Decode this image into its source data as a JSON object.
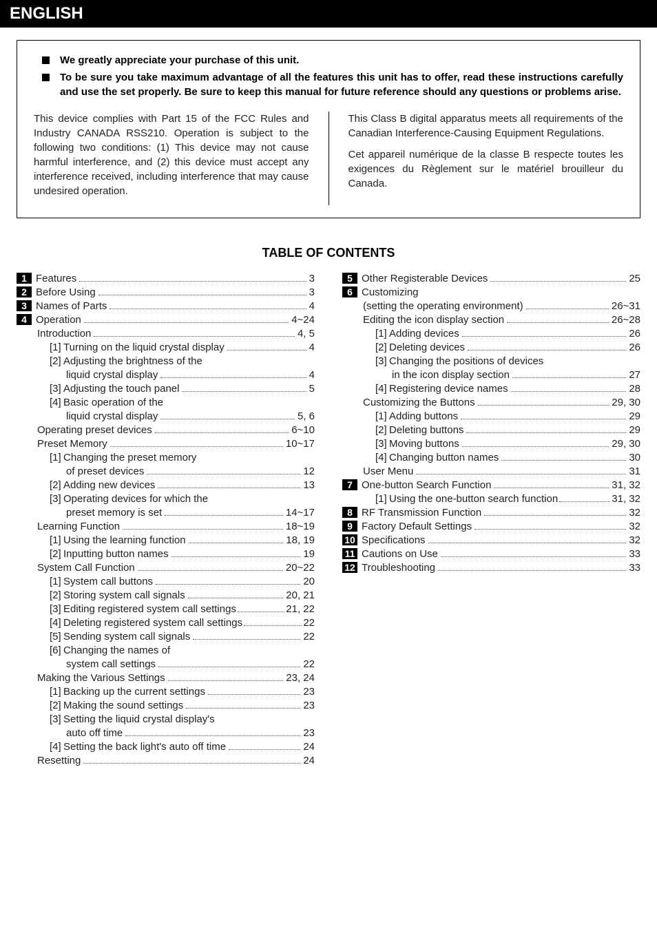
{
  "language_header": "ENGLISH",
  "intro_bullets": [
    "We greatly appreciate your purchase of this unit.",
    "To be sure you take maximum advantage of all the features this unit has to offer, read these instructions carefully and use the set properly. Be sure to keep this manual for future reference should any questions or problems arise."
  ],
  "compliance": {
    "left": "This device complies with Part 15 of the FCC Rules and Industry CANADA RSS210.\nOperation is subject to the following two conditions: (1) This device may not cause harmful interference, and (2) this device must accept any interference received, including interference that may cause undesired operation.",
    "right_en": "This Class B digital apparatus meets all requirements of the Canadian Interference-Causing Equipment Regulations.",
    "right_fr": "Cet appareil numérique de la classe B respecte toutes les exigences du Règlement sur le matériel brouilleur du Canada."
  },
  "toc_title": "TABLE OF CONTENTS",
  "toc_left": [
    {
      "num": "1",
      "label": "Features",
      "page": "3",
      "indent": 0
    },
    {
      "num": "2",
      "label": "Before Using",
      "page": "3",
      "indent": 0
    },
    {
      "num": "3",
      "label": "Names of Parts",
      "page": "4",
      "indent": 0
    },
    {
      "num": "4",
      "label": "Operation",
      "page": "4~24",
      "indent": 0
    },
    {
      "label": "Introduction",
      "page": "4, 5",
      "indent": 1
    },
    {
      "bracket": "[1]",
      "label": "Turning on the liquid crystal display",
      "page": "4",
      "indent": 2
    },
    {
      "bracket": "[2]",
      "label": "Adjusting the brightness of the",
      "indent": 2,
      "nowrap": true
    },
    {
      "label": "liquid crystal display",
      "page": "4",
      "indent": 3
    },
    {
      "bracket": "[3]",
      "label": "Adjusting the touch panel",
      "page": "5",
      "indent": 2
    },
    {
      "bracket": "[4]",
      "label": "Basic operation of the",
      "indent": 2,
      "nowrap": true
    },
    {
      "label": "liquid crystal display",
      "page": "5, 6",
      "indent": 3
    },
    {
      "label": "Operating preset devices",
      "page": "6~10",
      "indent": 1
    },
    {
      "label": "Preset Memory",
      "page": "10~17",
      "indent": 1
    },
    {
      "bracket": "[1]",
      "label": "Changing the preset memory",
      "indent": 2,
      "nowrap": true
    },
    {
      "label": "of preset devices",
      "page": "12",
      "indent": 3
    },
    {
      "bracket": "[2]",
      "label": "Adding new devices",
      "page": "13",
      "indent": 2
    },
    {
      "bracket": "[3]",
      "label": "Operating devices for which the",
      "indent": 2,
      "nowrap": true
    },
    {
      "label": "preset memory is set",
      "page": "14~17",
      "indent": 3
    },
    {
      "label": "Learning Function",
      "page": "18~19",
      "indent": 1
    },
    {
      "bracket": "[1]",
      "label": "Using the learning function",
      "page": "18, 19",
      "indent": 2
    },
    {
      "bracket": "[2]",
      "label": "Inputting button names",
      "page": "19",
      "indent": 2
    },
    {
      "label": "System Call Function",
      "page": "20~22",
      "indent": 1
    },
    {
      "bracket": "[1]",
      "label": "System call buttons",
      "page": "20",
      "indent": 2
    },
    {
      "bracket": "[2]",
      "label": "Storing system call signals",
      "page": "20, 21",
      "indent": 2
    },
    {
      "bracket": "[3]",
      "label": "Editing registered system call settings",
      "page": "21, 22",
      "indent": 2,
      "tight": true
    },
    {
      "bracket": "[4]",
      "label": "Deleting registered system call settings",
      "page": "22",
      "indent": 2,
      "tight": true
    },
    {
      "bracket": "[5]",
      "label": "Sending system call signals",
      "page": "22",
      "indent": 2
    },
    {
      "bracket": "[6]",
      "label": "Changing the names of",
      "indent": 2,
      "nowrap": true
    },
    {
      "label": "system call settings",
      "page": "22",
      "indent": 3
    },
    {
      "label": "Making the Various Settings",
      "page": "23, 24",
      "indent": 1
    },
    {
      "bracket": "[1]",
      "label": "Backing up the current settings",
      "page": "23",
      "indent": 2
    },
    {
      "bracket": "[2]",
      "label": "Making the sound settings",
      "page": "23",
      "indent": 2
    },
    {
      "bracket": "[3]",
      "label": "Setting the liquid crystal display's",
      "indent": 2,
      "nowrap": true
    },
    {
      "label": "auto off time",
      "page": "23",
      "indent": 3
    },
    {
      "bracket": "[4]",
      "label": "Setting the back light's auto off time",
      "page": "24",
      "indent": 2
    },
    {
      "label": "Resetting",
      "page": "24",
      "indent": 1
    }
  ],
  "toc_right": [
    {
      "num": "5",
      "label": "Other Registerable Devices",
      "page": "25",
      "indent": 0
    },
    {
      "num": "6",
      "label": "Customizing",
      "indent": 0,
      "nowrap": true
    },
    {
      "label": "(setting the operating environment)",
      "page": "26~31",
      "indent": 1
    },
    {
      "label": "Editing the icon display section",
      "page": "26~28",
      "indent": 1
    },
    {
      "bracket": "[1]",
      "label": "Adding devices",
      "page": "26",
      "indent": 2
    },
    {
      "bracket": "[2]",
      "label": "Deleting devices",
      "page": "26",
      "indent": 2
    },
    {
      "bracket": "[3]",
      "label": "Changing the positions of devices",
      "indent": 2,
      "nowrap": true
    },
    {
      "label": "in the icon display section",
      "page": "27",
      "indent": 3
    },
    {
      "bracket": "[4]",
      "label": "Registering device names",
      "page": "28",
      "indent": 2
    },
    {
      "label": "Customizing the Buttons",
      "page": "29, 30",
      "indent": 1
    },
    {
      "bracket": "[1]",
      "label": "Adding buttons",
      "page": "29",
      "indent": 2
    },
    {
      "bracket": "[2]",
      "label": "Deleting buttons",
      "page": "29",
      "indent": 2
    },
    {
      "bracket": "[3]",
      "label": "Moving buttons",
      "page": "29, 30",
      "indent": 2
    },
    {
      "bracket": "[4]",
      "label": "Changing button names",
      "page": "30",
      "indent": 2
    },
    {
      "label": "User Menu",
      "page": "31",
      "indent": 1
    },
    {
      "num": "7",
      "label": "One-button Search Function",
      "page": "31, 32",
      "indent": 0
    },
    {
      "bracket": "[1]",
      "label": "Using the one-button search function",
      "page": "31, 32",
      "indent": 2,
      "tight": true
    },
    {
      "num": "8",
      "label": "RF Transmission Function",
      "page": "32",
      "indent": 0
    },
    {
      "num": "9",
      "label": "Factory Default Settings",
      "page": "32",
      "indent": 0
    },
    {
      "num": "10",
      "label": "Specifications",
      "page": "32",
      "indent": 0
    },
    {
      "num": "11",
      "label": "Cautions on Use",
      "page": "33",
      "indent": 0
    },
    {
      "num": "12",
      "label": "Troubleshooting",
      "page": "33",
      "indent": 0
    }
  ]
}
